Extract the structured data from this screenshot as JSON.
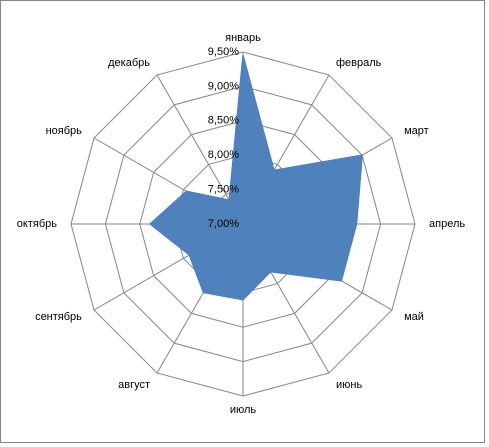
{
  "chart_data": {
    "type": "radar",
    "categories": [
      "январь",
      "февраль",
      "март",
      "апрель",
      "май",
      "июнь",
      "июль",
      "август",
      "сентябрь",
      "октябрь",
      "ноябрь",
      "декабрь"
    ],
    "values": [
      9.45,
      7.9,
      9.0,
      8.65,
      8.65,
      7.8,
      8.1,
      8.15,
      7.9,
      8.35,
      7.95,
      7.4
    ],
    "color": "#4f81bd",
    "ylim": [
      7.0,
      9.5
    ],
    "yticks": [
      {
        "value": 7.0,
        "label": "7,00%"
      },
      {
        "value": 7.5,
        "label": "7,50%"
      },
      {
        "value": 8.0,
        "label": "8,00%"
      },
      {
        "value": 8.5,
        "label": "8,50%"
      },
      {
        "value": 9.0,
        "label": "9,00%"
      },
      {
        "value": 9.5,
        "label": "9,50%"
      }
    ],
    "grid": true
  }
}
